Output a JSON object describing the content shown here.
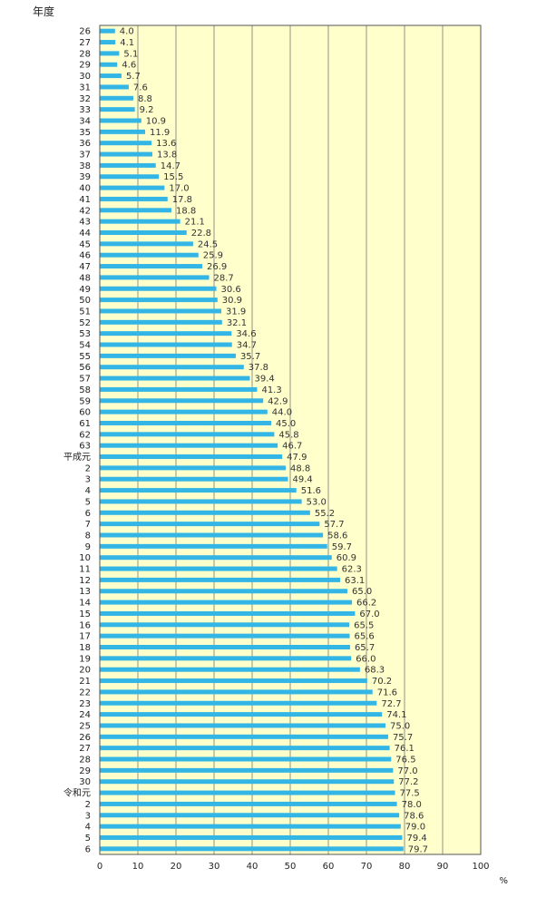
{
  "chart_data": {
    "type": "bar",
    "orientation": "horizontal",
    "ylabel": "年度",
    "xlabel": "",
    "x_unit": "%",
    "xlim": [
      0,
      100
    ],
    "x_ticks": [
      0,
      10,
      20,
      30,
      40,
      50,
      60,
      70,
      80,
      90,
      100
    ],
    "grid": true,
    "colors": {
      "bar": "#33b6e6",
      "plot_bg": "#ffffcc",
      "grid": "#777777"
    },
    "categories": [
      "26",
      "27",
      "28",
      "29",
      "30",
      "31",
      "32",
      "33",
      "34",
      "35",
      "36",
      "37",
      "38",
      "39",
      "40",
      "41",
      "42",
      "43",
      "44",
      "45",
      "46",
      "47",
      "48",
      "49",
      "50",
      "51",
      "52",
      "53",
      "54",
      "55",
      "56",
      "57",
      "58",
      "59",
      "60",
      "61",
      "62",
      "63",
      "平成元",
      "2",
      "3",
      "4",
      "5",
      "6",
      "7",
      "8",
      "9",
      "10",
      "11",
      "12",
      "13",
      "14",
      "15",
      "16",
      "17",
      "18",
      "19",
      "20",
      "21",
      "22",
      "23",
      "24",
      "25",
      "26",
      "27",
      "28",
      "29",
      "30",
      "令和元",
      "2",
      "3",
      "4",
      "5",
      "6"
    ],
    "values": [
      4.0,
      4.1,
      5.1,
      4.6,
      5.7,
      7.6,
      8.8,
      9.2,
      10.9,
      11.9,
      13.6,
      13.8,
      14.7,
      15.5,
      17.0,
      17.8,
      18.8,
      21.1,
      22.8,
      24.5,
      25.9,
      26.9,
      28.7,
      30.6,
      30.9,
      31.9,
      32.1,
      34.6,
      34.7,
      35.7,
      37.8,
      39.4,
      41.3,
      42.9,
      44.0,
      45.0,
      45.8,
      46.7,
      47.9,
      48.8,
      49.4,
      51.6,
      53.0,
      55.2,
      57.7,
      58.6,
      59.7,
      60.9,
      62.3,
      63.1,
      65.0,
      66.2,
      67.0,
      65.5,
      65.6,
      65.7,
      66.0,
      68.3,
      70.2,
      71.6,
      72.7,
      74.1,
      75.0,
      75.7,
      76.1,
      76.5,
      77.0,
      77.2,
      77.5,
      78.0,
      78.6,
      79.0,
      79.4,
      79.7
    ],
    "value_labels": [
      "4.0",
      "4.1",
      "5.1",
      "4.6",
      "5.7",
      "7.6",
      "8.8",
      "9.2",
      "10.9",
      "11.9",
      "13.6",
      "13.8",
      "14.7",
      "15.5",
      "17.0",
      "17.8",
      "18.8",
      "21.1",
      "22.8",
      "24.5",
      "25.9",
      "26.9",
      "28.7",
      "30.6",
      "30.9",
      "31.9",
      "32.1",
      "34.6",
      "34.7",
      "35.7",
      "37.8",
      "39.4",
      "41.3",
      "42.9",
      "44.0",
      "45.0",
      "45.8",
      "46.7",
      "47.9",
      "48.8",
      "49.4",
      "51.6",
      "53.0",
      "55.2",
      "57.7",
      "58.6",
      "59.7",
      "60.9",
      "62.3",
      "63.1",
      "65.0",
      "66.2",
      "67.0",
      "65.5",
      "65.6",
      "65.7",
      "66.0",
      "68.3",
      "70.2",
      "71.6",
      "72.7",
      "74.1",
      "75.0",
      "75.7",
      "76.1",
      "76.5",
      "77.0",
      "77.2",
      "77.5",
      "78.0",
      "78.6",
      "79.0",
      "79.4",
      "79.7"
    ]
  }
}
